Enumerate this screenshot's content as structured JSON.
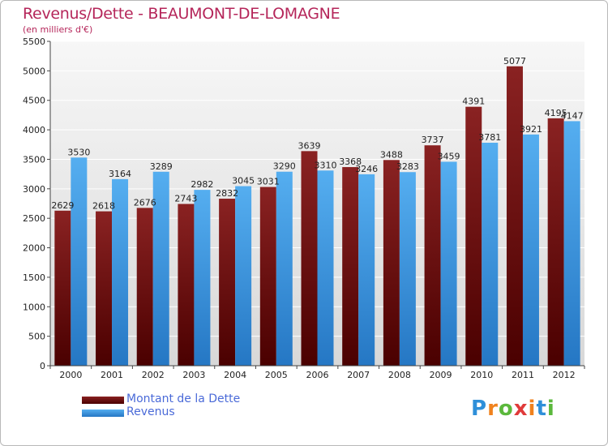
{
  "title": "Revenus/Dette - BEAUMONT-DE-LOMAGNE",
  "subtitle": "(en milliers d'€)",
  "logo": {
    "letters": [
      "P",
      "r",
      "o",
      "x",
      "i",
      "t",
      "i"
    ],
    "colors": [
      "#2e8fd9",
      "#f0821e",
      "#5bb83c",
      "#e03a3a",
      "#f0821e",
      "#2e8fd9",
      "#5bb83c"
    ]
  },
  "legend": [
    {
      "label": "Montant de la Dette",
      "color": "#6a0d0d"
    },
    {
      "label": "Revenus",
      "color": "#3b97e3"
    }
  ],
  "chart_data": {
    "type": "bar",
    "title": "Revenus/Dette - BEAUMONT-DE-LOMAGNE",
    "ylabel": "(en milliers d'€)",
    "xlabel": "",
    "categories": [
      "2000",
      "2001",
      "2002",
      "2003",
      "2004",
      "2005",
      "2006",
      "2007",
      "2008",
      "2009",
      "2010",
      "2011",
      "2012"
    ],
    "series": [
      {
        "name": "Montant de la Dette",
        "values": [
          2629,
          2618,
          2676,
          2743,
          2832,
          3031,
          3639,
          3368,
          3488,
          3737,
          4391,
          5077,
          4195
        ],
        "color": "#6a0d0d"
      },
      {
        "name": "Revenus",
        "values": [
          3530,
          3164,
          3289,
          2982,
          3045,
          3290,
          3310,
          3246,
          3283,
          3459,
          3781,
          3921,
          4147
        ],
        "color": "#3b97e3"
      }
    ],
    "ylim": [
      0,
      5500
    ],
    "yticks": [
      0,
      500,
      1000,
      1500,
      2000,
      2500,
      3000,
      3500,
      4000,
      4500,
      5000,
      5500
    ],
    "grid": true,
    "legend_position": "bottom-left"
  }
}
